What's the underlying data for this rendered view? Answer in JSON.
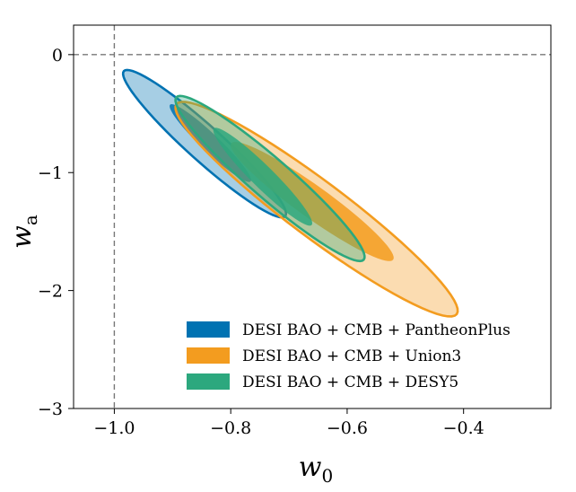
{
  "chart_data": {
    "type": "contour",
    "xlabel_main": "w",
    "xlabel_sub": "0",
    "ylabel_main": "w",
    "ylabel_sub": "a",
    "xlim": [
      -1.07,
      -0.25
    ],
    "ylim": [
      -3.0,
      0.25
    ],
    "xticks": [
      -1.0,
      -0.8,
      -0.6,
      -0.4
    ],
    "xtick_labels": [
      "−1.0",
      "−0.8",
      "−0.6",
      "−0.4"
    ],
    "yticks": [
      0,
      -1,
      -2,
      -3
    ],
    "ytick_labels": [
      "0",
      "−1",
      "−2",
      "−3"
    ],
    "reference_lines": {
      "w0": -1.0,
      "wa": 0.0
    },
    "legend_position": "lower-right",
    "series": [
      {
        "name": "DESI BAO + CMB + PantheonPlus",
        "color": "#0072b2",
        "center": [
          -0.83,
          -0.75
        ],
        "sigma2_extent": {
          "w0": [
            -0.985,
            -0.705
          ],
          "wa": [
            -0.13,
            -1.38
          ]
        },
        "sigma1_extent": {
          "w0": [
            -0.905,
            -0.765
          ],
          "wa": [
            -0.42,
            -1.08
          ]
        }
      },
      {
        "name": "DESI BAO + CMB + Union3",
        "color": "#f39c1f",
        "center": [
          -0.66,
          -1.25
        ],
        "sigma2_extent": {
          "w0": [
            -0.895,
            -0.41
          ],
          "wa": [
            -0.4,
            -2.22
          ]
        },
        "sigma1_extent": {
          "w0": [
            -0.8,
            -0.52
          ],
          "wa": [
            -0.74,
            -1.75
          ]
        }
      },
      {
        "name": "DESI BAO + CMB + DESY5",
        "color": "#2ca87e",
        "center": [
          -0.73,
          -1.05
        ],
        "sigma2_extent": {
          "w0": [
            -0.895,
            -0.57
          ],
          "wa": [
            -0.35,
            -1.75
          ]
        },
        "sigma1_extent": {
          "w0": [
            -0.83,
            -0.66
          ],
          "wa": [
            -0.62,
            -1.45
          ]
        }
      }
    ]
  }
}
